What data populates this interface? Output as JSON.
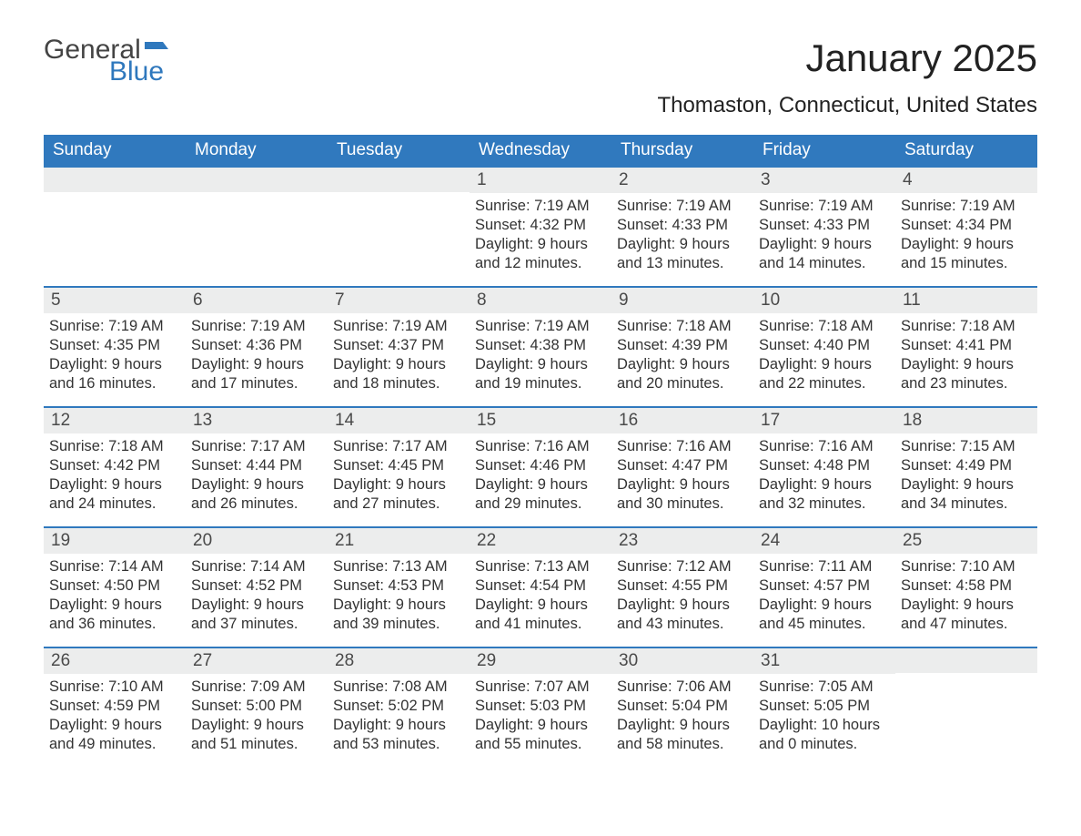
{
  "brand": {
    "word1": "General",
    "word2": "Blue",
    "flag_color": "#2f78bd"
  },
  "title": "January 2025",
  "location": "Thomaston, Connecticut, United States",
  "colors": {
    "header_bg": "#3079be",
    "header_text": "#ffffff",
    "daynum_bg": "#eceded",
    "rule": "#3079be",
    "body_text": "#333333"
  },
  "day_names": [
    "Sunday",
    "Monday",
    "Tuesday",
    "Wednesday",
    "Thursday",
    "Friday",
    "Saturday"
  ],
  "weeks": [
    [
      {
        "n": "",
        "sunrise": "",
        "sunset": "",
        "daylight": ""
      },
      {
        "n": "",
        "sunrise": "",
        "sunset": "",
        "daylight": ""
      },
      {
        "n": "",
        "sunrise": "",
        "sunset": "",
        "daylight": ""
      },
      {
        "n": "1",
        "sunrise": "Sunrise: 7:19 AM",
        "sunset": "Sunset: 4:32 PM",
        "daylight": "Daylight: 9 hours and 12 minutes."
      },
      {
        "n": "2",
        "sunrise": "Sunrise: 7:19 AM",
        "sunset": "Sunset: 4:33 PM",
        "daylight": "Daylight: 9 hours and 13 minutes."
      },
      {
        "n": "3",
        "sunrise": "Sunrise: 7:19 AM",
        "sunset": "Sunset: 4:33 PM",
        "daylight": "Daylight: 9 hours and 14 minutes."
      },
      {
        "n": "4",
        "sunrise": "Sunrise: 7:19 AM",
        "sunset": "Sunset: 4:34 PM",
        "daylight": "Daylight: 9 hours and 15 minutes."
      }
    ],
    [
      {
        "n": "5",
        "sunrise": "Sunrise: 7:19 AM",
        "sunset": "Sunset: 4:35 PM",
        "daylight": "Daylight: 9 hours and 16 minutes."
      },
      {
        "n": "6",
        "sunrise": "Sunrise: 7:19 AM",
        "sunset": "Sunset: 4:36 PM",
        "daylight": "Daylight: 9 hours and 17 minutes."
      },
      {
        "n": "7",
        "sunrise": "Sunrise: 7:19 AM",
        "sunset": "Sunset: 4:37 PM",
        "daylight": "Daylight: 9 hours and 18 minutes."
      },
      {
        "n": "8",
        "sunrise": "Sunrise: 7:19 AM",
        "sunset": "Sunset: 4:38 PM",
        "daylight": "Daylight: 9 hours and 19 minutes."
      },
      {
        "n": "9",
        "sunrise": "Sunrise: 7:18 AM",
        "sunset": "Sunset: 4:39 PM",
        "daylight": "Daylight: 9 hours and 20 minutes."
      },
      {
        "n": "10",
        "sunrise": "Sunrise: 7:18 AM",
        "sunset": "Sunset: 4:40 PM",
        "daylight": "Daylight: 9 hours and 22 minutes."
      },
      {
        "n": "11",
        "sunrise": "Sunrise: 7:18 AM",
        "sunset": "Sunset: 4:41 PM",
        "daylight": "Daylight: 9 hours and 23 minutes."
      }
    ],
    [
      {
        "n": "12",
        "sunrise": "Sunrise: 7:18 AM",
        "sunset": "Sunset: 4:42 PM",
        "daylight": "Daylight: 9 hours and 24 minutes."
      },
      {
        "n": "13",
        "sunrise": "Sunrise: 7:17 AM",
        "sunset": "Sunset: 4:44 PM",
        "daylight": "Daylight: 9 hours and 26 minutes."
      },
      {
        "n": "14",
        "sunrise": "Sunrise: 7:17 AM",
        "sunset": "Sunset: 4:45 PM",
        "daylight": "Daylight: 9 hours and 27 minutes."
      },
      {
        "n": "15",
        "sunrise": "Sunrise: 7:16 AM",
        "sunset": "Sunset: 4:46 PM",
        "daylight": "Daylight: 9 hours and 29 minutes."
      },
      {
        "n": "16",
        "sunrise": "Sunrise: 7:16 AM",
        "sunset": "Sunset: 4:47 PM",
        "daylight": "Daylight: 9 hours and 30 minutes."
      },
      {
        "n": "17",
        "sunrise": "Sunrise: 7:16 AM",
        "sunset": "Sunset: 4:48 PM",
        "daylight": "Daylight: 9 hours and 32 minutes."
      },
      {
        "n": "18",
        "sunrise": "Sunrise: 7:15 AM",
        "sunset": "Sunset: 4:49 PM",
        "daylight": "Daylight: 9 hours and 34 minutes."
      }
    ],
    [
      {
        "n": "19",
        "sunrise": "Sunrise: 7:14 AM",
        "sunset": "Sunset: 4:50 PM",
        "daylight": "Daylight: 9 hours and 36 minutes."
      },
      {
        "n": "20",
        "sunrise": "Sunrise: 7:14 AM",
        "sunset": "Sunset: 4:52 PM",
        "daylight": "Daylight: 9 hours and 37 minutes."
      },
      {
        "n": "21",
        "sunrise": "Sunrise: 7:13 AM",
        "sunset": "Sunset: 4:53 PM",
        "daylight": "Daylight: 9 hours and 39 minutes."
      },
      {
        "n": "22",
        "sunrise": "Sunrise: 7:13 AM",
        "sunset": "Sunset: 4:54 PM",
        "daylight": "Daylight: 9 hours and 41 minutes."
      },
      {
        "n": "23",
        "sunrise": "Sunrise: 7:12 AM",
        "sunset": "Sunset: 4:55 PM",
        "daylight": "Daylight: 9 hours and 43 minutes."
      },
      {
        "n": "24",
        "sunrise": "Sunrise: 7:11 AM",
        "sunset": "Sunset: 4:57 PM",
        "daylight": "Daylight: 9 hours and 45 minutes."
      },
      {
        "n": "25",
        "sunrise": "Sunrise: 7:10 AM",
        "sunset": "Sunset: 4:58 PM",
        "daylight": "Daylight: 9 hours and 47 minutes."
      }
    ],
    [
      {
        "n": "26",
        "sunrise": "Sunrise: 7:10 AM",
        "sunset": "Sunset: 4:59 PM",
        "daylight": "Daylight: 9 hours and 49 minutes."
      },
      {
        "n": "27",
        "sunrise": "Sunrise: 7:09 AM",
        "sunset": "Sunset: 5:00 PM",
        "daylight": "Daylight: 9 hours and 51 minutes."
      },
      {
        "n": "28",
        "sunrise": "Sunrise: 7:08 AM",
        "sunset": "Sunset: 5:02 PM",
        "daylight": "Daylight: 9 hours and 53 minutes."
      },
      {
        "n": "29",
        "sunrise": "Sunrise: 7:07 AM",
        "sunset": "Sunset: 5:03 PM",
        "daylight": "Daylight: 9 hours and 55 minutes."
      },
      {
        "n": "30",
        "sunrise": "Sunrise: 7:06 AM",
        "sunset": "Sunset: 5:04 PM",
        "daylight": "Daylight: 9 hours and 58 minutes."
      },
      {
        "n": "31",
        "sunrise": "Sunrise: 7:05 AM",
        "sunset": "Sunset: 5:05 PM",
        "daylight": "Daylight: 10 hours and 0 minutes."
      },
      {
        "n": "",
        "sunrise": "",
        "sunset": "",
        "daylight": ""
      }
    ]
  ]
}
